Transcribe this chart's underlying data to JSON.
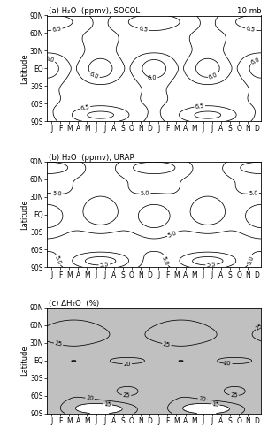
{
  "title_a": "(a) H₂O  (ppmv), SOCOL",
  "title_b": "(b) H₂O  (ppmv), URAP",
  "title_c": "(c) ΔH₂O  (%)",
  "pressure_label": "10 mb",
  "ylabel": "Latitude",
  "lat_ticks": [
    -90,
    -60,
    -30,
    0,
    30,
    60,
    90
  ],
  "lat_labels": [
    "90S",
    "60S",
    "30S",
    "EQ",
    "30N",
    "60N",
    "90N"
  ],
  "month_labels": [
    "J",
    "F",
    "M",
    "A",
    "M",
    "J",
    "J",
    "A",
    "S",
    "O",
    "N",
    "D",
    "J",
    "F",
    "M",
    "A",
    "M",
    "J",
    "J",
    "A",
    "S",
    "O",
    "N",
    "D"
  ],
  "contour_levels_a": [
    5.5,
    5.75,
    6.0,
    6.25,
    6.5,
    6.75,
    7.0
  ],
  "clabel_a": [
    6.0,
    6.5
  ],
  "contour_levels_b": [
    4.0,
    4.25,
    4.5,
    4.75,
    5.0,
    5.25,
    5.5,
    5.75
  ],
  "clabel_b": [
    4.5,
    5.0,
    5.5
  ],
  "contour_levels_c": [
    10,
    15,
    20,
    25,
    30
  ],
  "clabel_c": [
    15,
    20,
    25
  ],
  "bg_color_c": "#c0c0c0",
  "line_color": "black",
  "background": "white"
}
